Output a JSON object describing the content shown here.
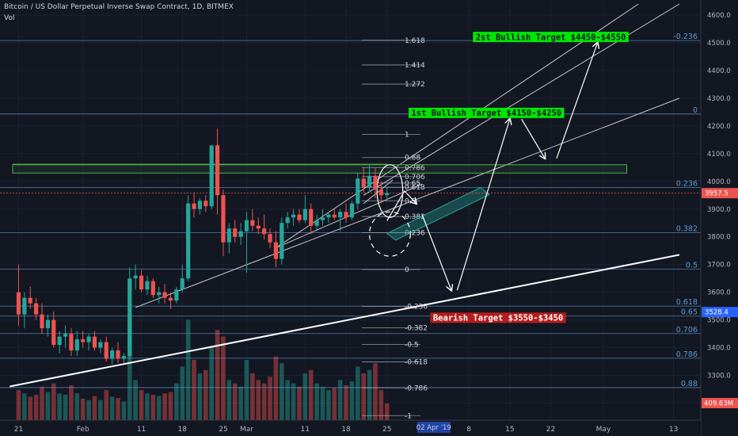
{
  "header": {
    "title": "Bitcoin / US Dollar Perpetual Inverse Swap Contract, 1D, BITMEX",
    "indicator": "Vol"
  },
  "chart_data": {
    "type": "candlestick",
    "x_ticks": [
      {
        "label": "21",
        "day": 0
      },
      {
        "label": "Feb",
        "day": 11
      },
      {
        "label": "11",
        "day": 21
      },
      {
        "label": "18",
        "day": 28
      },
      {
        "label": "25",
        "day": 35
      },
      {
        "label": "Mar",
        "day": 39
      },
      {
        "label": "11",
        "day": 49
      },
      {
        "label": "18",
        "day": 56
      },
      {
        "label": "25",
        "day": 63
      },
      {
        "label": "8",
        "day": 77
      },
      {
        "label": "15",
        "day": 84
      },
      {
        "label": "22",
        "day": 91
      },
      {
        "label": "May",
        "day": 100
      },
      {
        "label": "13",
        "day": 112
      }
    ],
    "x_highlight": "02 Apr '19",
    "x_highlight_day": 71,
    "y_ticks": [
      3200,
      3300,
      3400,
      3500,
      3600,
      3700,
      3800,
      3900,
      4000,
      4100,
      4200,
      4300,
      4400,
      4500,
      4600
    ],
    "y_tick_labels": [
      "3200.0",
      "3300.0",
      "3400.0",
      "3500.0",
      "3600.0",
      "3700.0",
      "3800.0",
      "3900.0",
      "4000.0",
      "4100.0",
      "4200.0",
      "4300.0",
      "4400.0",
      "4500.0",
      "4600.0"
    ],
    "ylim": [
      3150,
      4640
    ],
    "xlim": [
      -2.5,
      113
    ],
    "current_price": {
      "value": 3957.5,
      "label": "3957.5",
      "color": "#ef5350"
    },
    "price_markers": [
      {
        "value": 3528.4,
        "label": "3528.4",
        "color": "#2962ff"
      }
    ],
    "volume_marker": {
      "label": "409.63M",
      "color": "#ef5350"
    },
    "fib_right": {
      "color": "#5b9bd5",
      "levels": [
        {
          "label": "-0.236",
          "value": 4508
        },
        {
          "label": "0",
          "value": 4243
        },
        {
          "label": "0.236",
          "value": 3978
        },
        {
          "label": "0.382",
          "value": 3815
        },
        {
          "label": "0.5",
          "value": 3683
        },
        {
          "label": "0.618",
          "value": 3550
        },
        {
          "label": "0.65",
          "value": 3514
        },
        {
          "label": "0.706",
          "value": 3451
        },
        {
          "label": "0.786",
          "value": 3362
        },
        {
          "label": "0.88",
          "value": 3256
        }
      ]
    },
    "fib_middle": {
      "color": "#b2b5be",
      "levels": [
        {
          "label": "1.618",
          "value": 4509
        },
        {
          "label": "1.414",
          "value": 4420
        },
        {
          "label": "1.272",
          "value": 4351
        },
        {
          "label": "1",
          "value": 4170
        },
        {
          "label": "0.88",
          "value": 4086
        },
        {
          "label": "0.786",
          "value": 4049
        },
        {
          "label": "0.706",
          "value": 4017
        },
        {
          "label": "0.65",
          "value": 3994
        },
        {
          "label": "0.618",
          "value": 3979
        },
        {
          "label": "0.5",
          "value": 3930
        },
        {
          "label": "0.382",
          "value": 3873
        },
        {
          "label": "0.236",
          "value": 3815
        },
        {
          "label": "0",
          "value": 3682
        },
        {
          "label": "-0.236",
          "value": 3549
        },
        {
          "label": "-0.382",
          "value": 3472
        },
        {
          "label": "-0.5",
          "value": 3412
        },
        {
          "label": "-0.618",
          "value": 3349
        },
        {
          "label": "-0.786",
          "value": 3255
        },
        {
          "label": "-1",
          "value": 3155
        }
      ]
    },
    "annotations": [
      {
        "text": "2st Bullish Target $4450-$4550",
        "bg": "#00e600",
        "fg": "#131722",
        "day": 91,
        "value": 4521
      },
      {
        "text": "1st Bullish Target $4150-$4250",
        "bg": "#00e600",
        "fg": "#131722",
        "day": 80,
        "value": 4247
      },
      {
        "text": "Bearish Target $3550-$3450",
        "bg": "#b71c1c",
        "fg": "#ffffff",
        "day": 82,
        "value": 3508
      }
    ],
    "candles": [
      {
        "o": 3600,
        "h": 3700,
        "l": 3480,
        "c": 3520
      },
      {
        "o": 3520,
        "h": 3600,
        "l": 3470,
        "c": 3580
      },
      {
        "o": 3580,
        "h": 3620,
        "l": 3540,
        "c": 3560
      },
      {
        "o": 3560,
        "h": 3580,
        "l": 3500,
        "c": 3520
      },
      {
        "o": 3520,
        "h": 3560,
        "l": 3450,
        "c": 3470
      },
      {
        "o": 3470,
        "h": 3520,
        "l": 3440,
        "c": 3500
      },
      {
        "o": 3500,
        "h": 3530,
        "l": 3400,
        "c": 3410
      },
      {
        "o": 3410,
        "h": 3460,
        "l": 3380,
        "c": 3440
      },
      {
        "o": 3440,
        "h": 3480,
        "l": 3400,
        "c": 3450
      },
      {
        "o": 3450,
        "h": 3470,
        "l": 3370,
        "c": 3390
      },
      {
        "o": 3390,
        "h": 3460,
        "l": 3370,
        "c": 3430
      },
      {
        "o": 3430,
        "h": 3460,
        "l": 3400,
        "c": 3420
      },
      {
        "o": 3420,
        "h": 3450,
        "l": 3390,
        "c": 3440
      },
      {
        "o": 3440,
        "h": 3460,
        "l": 3390,
        "c": 3400
      },
      {
        "o": 3400,
        "h": 3430,
        "l": 3380,
        "c": 3420
      },
      {
        "o": 3420,
        "h": 3440,
        "l": 3350,
        "c": 3360
      },
      {
        "o": 3360,
        "h": 3400,
        "l": 3340,
        "c": 3390
      },
      {
        "o": 3390,
        "h": 3420,
        "l": 3345,
        "c": 3360
      },
      {
        "o": 3360,
        "h": 3380,
        "l": 3345,
        "c": 3370
      },
      {
        "o": 3370,
        "h": 3690,
        "l": 3360,
        "c": 3650
      },
      {
        "o": 3650,
        "h": 3700,
        "l": 3610,
        "c": 3660
      },
      {
        "o": 3660,
        "h": 3680,
        "l": 3600,
        "c": 3610
      },
      {
        "o": 3610,
        "h": 3660,
        "l": 3590,
        "c": 3640
      },
      {
        "o": 3640,
        "h": 3650,
        "l": 3580,
        "c": 3590
      },
      {
        "o": 3590,
        "h": 3620,
        "l": 3560,
        "c": 3600
      },
      {
        "o": 3600,
        "h": 3630,
        "l": 3560,
        "c": 3580
      },
      {
        "o": 3580,
        "h": 3600,
        "l": 3540,
        "c": 3570
      },
      {
        "o": 3570,
        "h": 3620,
        "l": 3560,
        "c": 3610
      },
      {
        "o": 3610,
        "h": 3700,
        "l": 3600,
        "c": 3650
      },
      {
        "o": 3650,
        "h": 3950,
        "l": 3640,
        "c": 3920
      },
      {
        "o": 3920,
        "h": 3960,
        "l": 3870,
        "c": 3900
      },
      {
        "o": 3900,
        "h": 3940,
        "l": 3880,
        "c": 3930
      },
      {
        "o": 3930,
        "h": 3950,
        "l": 3890,
        "c": 3910
      },
      {
        "o": 3910,
        "h": 4120,
        "l": 3900,
        "c": 4130
      },
      {
        "o": 4130,
        "h": 4190,
        "l": 3880,
        "c": 3950
      },
      {
        "o": 3950,
        "h": 3970,
        "l": 3730,
        "c": 3780
      },
      {
        "o": 3780,
        "h": 3850,
        "l": 3740,
        "c": 3830
      },
      {
        "o": 3830,
        "h": 3860,
        "l": 3780,
        "c": 3800
      },
      {
        "o": 3800,
        "h": 3850,
        "l": 3770,
        "c": 3820
      },
      {
        "o": 3820,
        "h": 3890,
        "l": 3670,
        "c": 3860
      },
      {
        "o": 3860,
        "h": 3900,
        "l": 3820,
        "c": 3840
      },
      {
        "o": 3840,
        "h": 3870,
        "l": 3810,
        "c": 3830
      },
      {
        "o": 3830,
        "h": 3880,
        "l": 3790,
        "c": 3810
      },
      {
        "o": 3810,
        "h": 3830,
        "l": 3760,
        "c": 3780
      },
      {
        "o": 3780,
        "h": 3820,
        "l": 3690,
        "c": 3720
      },
      {
        "o": 3720,
        "h": 3870,
        "l": 3700,
        "c": 3850
      },
      {
        "o": 3850,
        "h": 3890,
        "l": 3830,
        "c": 3870
      },
      {
        "o": 3870,
        "h": 3900,
        "l": 3840,
        "c": 3880
      },
      {
        "o": 3880,
        "h": 3900,
        "l": 3850,
        "c": 3860
      },
      {
        "o": 3860,
        "h": 3950,
        "l": 3850,
        "c": 3900
      },
      {
        "o": 3900,
        "h": 3920,
        "l": 3810,
        "c": 3840
      },
      {
        "o": 3840,
        "h": 3880,
        "l": 3820,
        "c": 3860
      },
      {
        "o": 3860,
        "h": 3900,
        "l": 3840,
        "c": 3870
      },
      {
        "o": 3870,
        "h": 3890,
        "l": 3850,
        "c": 3880
      },
      {
        "o": 3880,
        "h": 3900,
        "l": 3860,
        "c": 3870
      },
      {
        "o": 3870,
        "h": 3900,
        "l": 3820,
        "c": 3890
      },
      {
        "o": 3890,
        "h": 3920,
        "l": 3850,
        "c": 3870
      },
      {
        "o": 3870,
        "h": 3930,
        "l": 3860,
        "c": 3920
      },
      {
        "o": 3920,
        "h": 4030,
        "l": 3900,
        "c": 4010
      },
      {
        "o": 4010,
        "h": 4050,
        "l": 3960,
        "c": 3980
      },
      {
        "o": 3980,
        "h": 4060,
        "l": 3960,
        "c": 4020
      },
      {
        "o": 4020,
        "h": 4050,
        "l": 3940,
        "c": 3970
      },
      {
        "o": 3970,
        "h": 4000,
        "l": 3920,
        "c": 3950
      },
      {
        "o": 3950,
        "h": 3980,
        "l": 3930,
        "c": 3958
      }
    ],
    "volume": [
      {
        "v": 45,
        "up": false
      },
      {
        "v": 40,
        "up": true
      },
      {
        "v": 35,
        "up": false
      },
      {
        "v": 38,
        "up": false
      },
      {
        "v": 50,
        "up": false
      },
      {
        "v": 42,
        "up": true
      },
      {
        "v": 55,
        "up": false
      },
      {
        "v": 40,
        "up": true
      },
      {
        "v": 38,
        "up": true
      },
      {
        "v": 52,
        "up": false
      },
      {
        "v": 40,
        "up": true
      },
      {
        "v": 32,
        "up": false
      },
      {
        "v": 30,
        "up": true
      },
      {
        "v": 36,
        "up": false
      },
      {
        "v": 30,
        "up": true
      },
      {
        "v": 45,
        "up": false
      },
      {
        "v": 35,
        "up": true
      },
      {
        "v": 33,
        "up": false
      },
      {
        "v": 28,
        "up": true
      },
      {
        "v": 160,
        "up": true
      },
      {
        "v": 60,
        "up": true
      },
      {
        "v": 45,
        "up": false
      },
      {
        "v": 40,
        "up": true
      },
      {
        "v": 38,
        "up": false
      },
      {
        "v": 36,
        "up": true
      },
      {
        "v": 40,
        "up": false
      },
      {
        "v": 42,
        "up": false
      },
      {
        "v": 55,
        "up": true
      },
      {
        "v": 80,
        "up": true
      },
      {
        "v": 150,
        "up": true
      },
      {
        "v": 90,
        "up": false
      },
      {
        "v": 70,
        "up": true
      },
      {
        "v": 75,
        "up": false
      },
      {
        "v": 110,
        "up": true
      },
      {
        "v": 135,
        "up": false
      },
      {
        "v": 125,
        "up": false
      },
      {
        "v": 60,
        "up": true
      },
      {
        "v": 55,
        "up": false
      },
      {
        "v": 50,
        "up": true
      },
      {
        "v": 90,
        "up": true
      },
      {
        "v": 70,
        "up": false
      },
      {
        "v": 60,
        "up": false
      },
      {
        "v": 55,
        "up": false
      },
      {
        "v": 65,
        "up": false
      },
      {
        "v": 95,
        "up": false
      },
      {
        "v": 85,
        "up": true
      },
      {
        "v": 60,
        "up": true
      },
      {
        "v": 55,
        "up": true
      },
      {
        "v": 50,
        "up": false
      },
      {
        "v": 70,
        "up": true
      },
      {
        "v": 75,
        "up": false
      },
      {
        "v": 55,
        "up": true
      },
      {
        "v": 50,
        "up": true
      },
      {
        "v": 45,
        "up": true
      },
      {
        "v": 48,
        "up": false
      },
      {
        "v": 60,
        "up": true
      },
      {
        "v": 52,
        "up": false
      },
      {
        "v": 58,
        "up": true
      },
      {
        "v": 80,
        "up": true
      },
      {
        "v": 70,
        "up": false
      },
      {
        "v": 75,
        "up": true
      },
      {
        "v": 85,
        "up": false
      },
      {
        "v": 45,
        "up": false
      },
      {
        "v": 25,
        "up": false
      }
    ],
    "drawings": {
      "support_line": {
        "d1": -1.5,
        "v1": 3260,
        "d2": 113,
        "v2": 3735,
        "width": 2,
        "color": "#ffffff"
      },
      "channel_lower": {
        "d1": 20,
        "v1": 3545,
        "d2": 113,
        "v2": 4300
      },
      "channel_upper": {
        "d1": 44,
        "v1": 3760,
        "d2": 106,
        "v2": 4640
      },
      "channel_mid": {
        "d1": 59,
        "v1": 3950,
        "d2": 113,
        "v2": 4640
      },
      "wedge_top": {
        "d1": 59,
        "v1": 3920,
        "d2": 64,
        "v2": 4005
      },
      "wedge_low": {
        "d1": 44,
        "v1": 3760,
        "d2": 69,
        "v2": 3990
      },
      "resistance_box": {
        "d1": -1,
        "v1": 4060,
        "d2": 104,
        "v2": 4030,
        "color": "#4caf50"
      },
      "resistance_top_line": {
        "d1": -1,
        "v1": 4062,
        "d2": 63,
        "v2": 4062,
        "color": "#4caf50"
      },
      "flag": [
        [
          63,
          3812
        ],
        [
          79,
          3978
        ],
        [
          80.5,
          3952
        ],
        [
          64.5,
          3788
        ]
      ],
      "flag_color": "#26a69a",
      "arrow_path": [
        [
          63,
          3858
        ],
        [
          66,
          3965
        ],
        [
          68,
          3920
        ]
      ],
      "arrows": [
        [
          [
            69,
            3880
          ],
          [
            74,
            3607
          ]
        ],
        [
          [
            75,
            3607
          ],
          [
            84,
            4225
          ]
        ],
        [
          [
            86,
            4225
          ],
          [
            90,
            4083
          ]
        ],
        [
          [
            92,
            4083
          ],
          [
            99,
            4500
          ]
        ]
      ],
      "arrow_color": "#ffffff",
      "ellipse": {
        "cx": 63.5,
        "cy": 3965,
        "rx": 2.2,
        "ry": 95
      },
      "dashed_ellipse": {
        "cx": 63.5,
        "cy": 3810,
        "rx": 3.5,
        "ry": 80
      }
    }
  }
}
